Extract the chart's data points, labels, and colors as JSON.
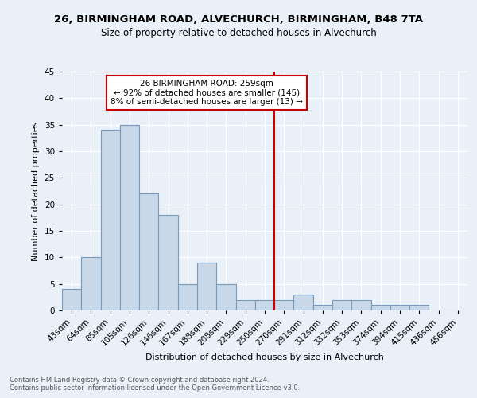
{
  "title1": "26, BIRMINGHAM ROAD, ALVECHURCH, BIRMINGHAM, B48 7TA",
  "title2": "Size of property relative to detached houses in Alvechurch",
  "xlabel": "Distribution of detached houses by size in Alvechurch",
  "ylabel": "Number of detached properties",
  "bin_labels": [
    "43sqm",
    "64sqm",
    "85sqm",
    "105sqm",
    "126sqm",
    "146sqm",
    "167sqm",
    "188sqm",
    "208sqm",
    "229sqm",
    "250sqm",
    "270sqm",
    "291sqm",
    "312sqm",
    "332sqm",
    "353sqm",
    "374sqm",
    "394sqm",
    "415sqm",
    "436sqm",
    "456sqm"
  ],
  "bar_values": [
    4,
    10,
    34,
    35,
    22,
    18,
    5,
    9,
    5,
    2,
    2,
    2,
    3,
    1,
    2,
    2,
    1,
    1,
    1,
    0,
    0
  ],
  "bar_color": "#c8d8e8",
  "bar_edge_color": "#7799bb",
  "vline_color": "#cc0000",
  "annotation_text": "26 BIRMINGHAM ROAD: 259sqm\n← 92% of detached houses are smaller (145)\n8% of semi-detached houses are larger (13) →",
  "annotation_box_color": "#ffffff",
  "annotation_box_edge": "#cc0000",
  "ylim": [
    0,
    45
  ],
  "yticks": [
    0,
    5,
    10,
    15,
    20,
    25,
    30,
    35,
    40,
    45
  ],
  "footer_text": "Contains HM Land Registry data © Crown copyright and database right 2024.\nContains public sector information licensed under the Open Government Licence v3.0.",
  "bg_color": "#eaf0f8",
  "plot_bg_color": "#eaf0f8",
  "title1_fontsize": 9.5,
  "title2_fontsize": 8.5,
  "ylabel_fontsize": 8.0,
  "xlabel_fontsize": 8.0,
  "tick_fontsize": 7.5,
  "footer_fontsize": 6.0
}
